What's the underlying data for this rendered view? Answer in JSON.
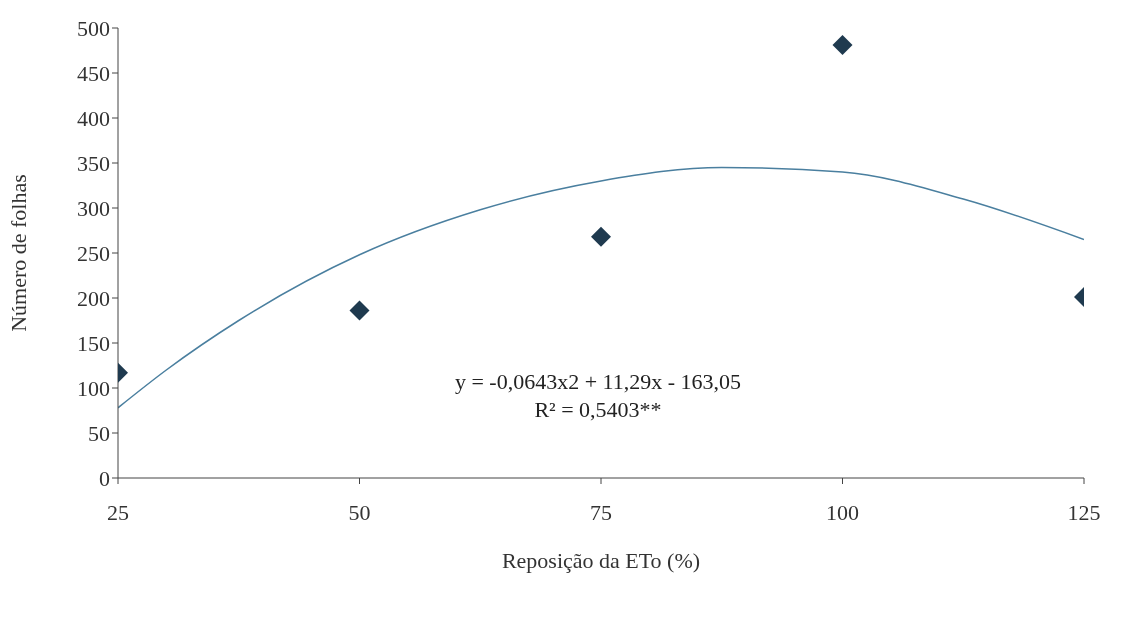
{
  "chart_data": {
    "type": "scatter",
    "xlabel": "Reposição da ETo (%)",
    "ylabel": "Número de folhas",
    "xlim": [
      25,
      125
    ],
    "xticks": [
      25,
      50,
      75,
      100,
      125
    ],
    "ylim": [
      0,
      500
    ],
    "yticks": [
      0,
      50,
      100,
      150,
      200,
      250,
      300,
      350,
      400,
      450,
      500
    ],
    "marker": "diamond",
    "series": [
      {
        "color": "#1f3a4f",
        "x": [
          25,
          50,
          75,
          100,
          125
        ],
        "values": [
          117,
          186,
          268,
          481,
          201
        ]
      },
      {
        "type": "line",
        "marker": "none",
        "color": "#4a7f9f",
        "x": [
          25,
          30,
          37.5,
          50,
          62.5,
          75,
          87.5,
          100,
          112.5,
          125
        ],
        "values": [
          78,
          120,
          175,
          248,
          298,
          330,
          345,
          340,
          310,
          265
        ]
      }
    ],
    "annotations": [
      "y = -0,0643x2 + 11,29x - 163,05",
      "R² = 0,5403**"
    ]
  }
}
